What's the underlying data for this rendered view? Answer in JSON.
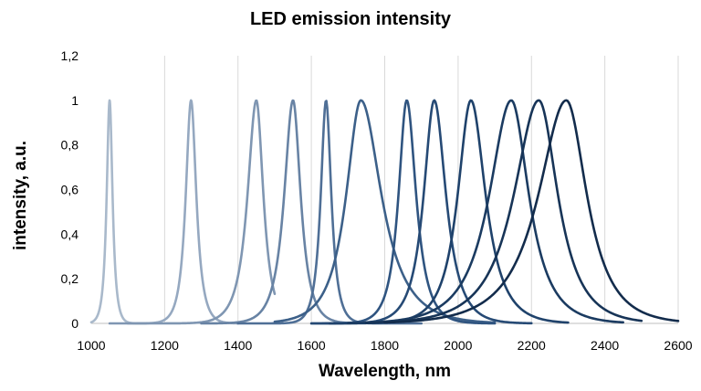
{
  "chart_data": {
    "type": "line",
    "title": "LED emission intensity",
    "xlabel": "Wavelength, nm",
    "ylabel": "intensity, a.u.",
    "xlim": [
      1000,
      2600
    ],
    "ylim": [
      0,
      1.2
    ],
    "x_ticks": [
      "1000",
      "1200",
      "1400",
      "1600",
      "1800",
      "2000",
      "2200",
      "2400",
      "2600"
    ],
    "y_ticks": [
      "0",
      "0,2",
      "0,4",
      "0,6",
      "0,8",
      "1",
      "1,2"
    ],
    "grid": "vertical",
    "legend": "none",
    "series": [
      {
        "color": "#a9b9cb",
        "peak": 1050,
        "fwhm_left": 10,
        "fwhm_right": 10,
        "x_range": [
          1000,
          1150
        ]
      },
      {
        "color": "#95a8c0",
        "peak": 1272,
        "fwhm_left": 18,
        "fwhm_right": 18,
        "x_range": [
          1100,
          1400
        ]
      },
      {
        "color": "#7f96b2",
        "peak": 1450,
        "fwhm_left": 30,
        "fwhm_right": 24,
        "x_range": [
          1050,
          1500
        ]
      },
      {
        "color": "#6883a4",
        "peak": 1550,
        "fwhm_left": 30,
        "fwhm_right": 26,
        "x_range": [
          1300,
          1700
        ]
      },
      {
        "color": "#4f6f96",
        "peak": 1640,
        "fwhm_left": 18,
        "fwhm_right": 18,
        "x_range": [
          1400,
          1900
        ]
      },
      {
        "color": "#3c6089",
        "peak": 1735,
        "fwhm_left": 50,
        "fwhm_right": 70,
        "x_range": [
          1500,
          2100
        ]
      },
      {
        "color": "#2f5480",
        "peak": 1860,
        "fwhm_left": 28,
        "fwhm_right": 32,
        "x_range": [
          1600,
          2100
        ]
      },
      {
        "color": "#264a75",
        "peak": 1935,
        "fwhm_left": 36,
        "fwhm_right": 40,
        "x_range": [
          1600,
          2200
        ]
      },
      {
        "color": "#1f426b",
        "peak": 2035,
        "fwhm_left": 45,
        "fwhm_right": 50,
        "x_range": [
          1650,
          2300
        ]
      },
      {
        "color": "#1b3b61",
        "peak": 2145,
        "fwhm_left": 75,
        "fwhm_right": 60,
        "x_range": [
          1700,
          2450
        ]
      },
      {
        "color": "#173457",
        "peak": 2220,
        "fwhm_left": 85,
        "fwhm_right": 65,
        "x_range": [
          1750,
          2500
        ]
      },
      {
        "color": "#132c4c",
        "peak": 2295,
        "fwhm_left": 95,
        "fwhm_right": 70,
        "x_range": [
          1800,
          2600
        ]
      }
    ]
  }
}
